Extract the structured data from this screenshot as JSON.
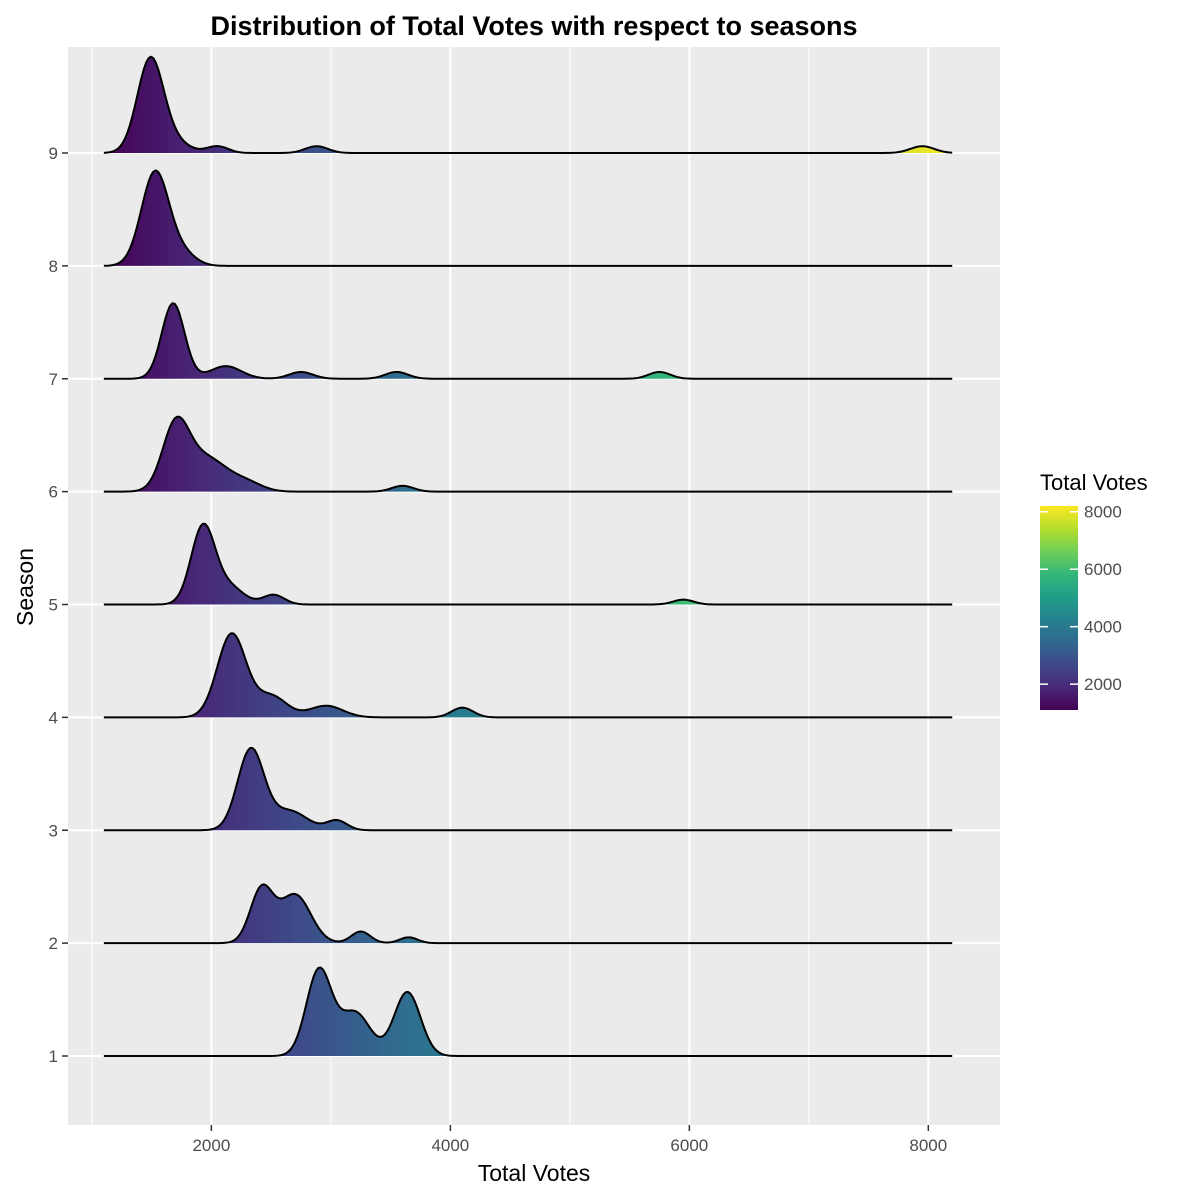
{
  "chart_data": {
    "type": "area",
    "subtype": "ridgeline density",
    "title": "Distribution of Total Votes with respect to seasons",
    "xlabel": "Total Votes",
    "ylabel": "Season",
    "xlim": [
      800,
      8600
    ],
    "x_ticks": [
      2000,
      4000,
      6000,
      8000
    ],
    "x_tick_labels": [
      "2000",
      "4000",
      "6000",
      "8000"
    ],
    "y_categories": [
      "1",
      "2",
      "3",
      "4",
      "5",
      "6",
      "7",
      "8",
      "9"
    ],
    "density_range": [
      1100,
      8200
    ],
    "grid": true,
    "fill": "gradient by Total Votes (viridis)",
    "legend": {
      "title": "Total Votes",
      "position": "right",
      "min": 1100,
      "max": 8200,
      "ticks": [
        2000,
        4000,
        6000,
        8000
      ],
      "tick_labels": [
        "2000",
        "4000",
        "6000",
        "8000"
      ],
      "palette": [
        "#440154",
        "#482878",
        "#3e4989",
        "#31688e",
        "#26828e",
        "#1f9e89",
        "#35b779",
        "#6ece58",
        "#b5de2b",
        "#fde725"
      ]
    },
    "series": [
      {
        "season": "1",
        "peaks": [
          {
            "x": 2900,
            "height": 0.88,
            "sd": 105
          },
          {
            "x": 3200,
            "height": 0.45,
            "sd": 130
          },
          {
            "x": 3640,
            "height": 0.66,
            "sd": 110
          }
        ]
      },
      {
        "season": "2",
        "peaks": [
          {
            "x": 2420,
            "height": 0.55,
            "sd": 95
          },
          {
            "x": 2700,
            "height": 0.5,
            "sd": 130
          },
          {
            "x": 3250,
            "height": 0.12,
            "sd": 80
          },
          {
            "x": 3650,
            "height": 0.06,
            "sd": 75
          }
        ]
      },
      {
        "season": "3",
        "peaks": [
          {
            "x": 2330,
            "height": 0.83,
            "sd": 110
          },
          {
            "x": 2650,
            "height": 0.2,
            "sd": 150
          },
          {
            "x": 3050,
            "height": 0.1,
            "sd": 85
          }
        ]
      },
      {
        "season": "4",
        "peaks": [
          {
            "x": 2170,
            "height": 0.86,
            "sd": 120
          },
          {
            "x": 2500,
            "height": 0.22,
            "sd": 130
          },
          {
            "x": 2960,
            "height": 0.12,
            "sd": 140
          },
          {
            "x": 4100,
            "height": 0.1,
            "sd": 90
          }
        ]
      },
      {
        "season": "5",
        "peaks": [
          {
            "x": 1930,
            "height": 0.8,
            "sd": 100
          },
          {
            "x": 2150,
            "height": 0.18,
            "sd": 120
          },
          {
            "x": 2520,
            "height": 0.1,
            "sd": 90
          },
          {
            "x": 5950,
            "height": 0.05,
            "sd": 85
          }
        ]
      },
      {
        "season": "6",
        "peaks": [
          {
            "x": 1700,
            "height": 0.63,
            "sd": 110
          },
          {
            "x": 1950,
            "height": 0.35,
            "sd": 180
          },
          {
            "x": 2300,
            "height": 0.08,
            "sd": 130
          },
          {
            "x": 3600,
            "height": 0.06,
            "sd": 90
          }
        ]
      },
      {
        "season": "7",
        "peaks": [
          {
            "x": 1680,
            "height": 0.78,
            "sd": 95
          },
          {
            "x": 2120,
            "height": 0.13,
            "sd": 130
          },
          {
            "x": 2750,
            "height": 0.07,
            "sd": 100
          },
          {
            "x": 3550,
            "height": 0.07,
            "sd": 95
          },
          {
            "x": 5750,
            "height": 0.07,
            "sd": 90
          }
        ]
      },
      {
        "season": "8",
        "peaks": [
          {
            "x": 1530,
            "height": 0.97,
            "sd": 115
          },
          {
            "x": 1760,
            "height": 0.12,
            "sd": 110
          }
        ]
      },
      {
        "season": "9",
        "peaks": [
          {
            "x": 1490,
            "height": 0.97,
            "sd": 110
          },
          {
            "x": 1700,
            "height": 0.1,
            "sd": 120
          },
          {
            "x": 2050,
            "height": 0.07,
            "sd": 90
          },
          {
            "x": 2880,
            "height": 0.07,
            "sd": 95
          },
          {
            "x": 7950,
            "height": 0.07,
            "sd": 100
          }
        ]
      }
    ]
  }
}
